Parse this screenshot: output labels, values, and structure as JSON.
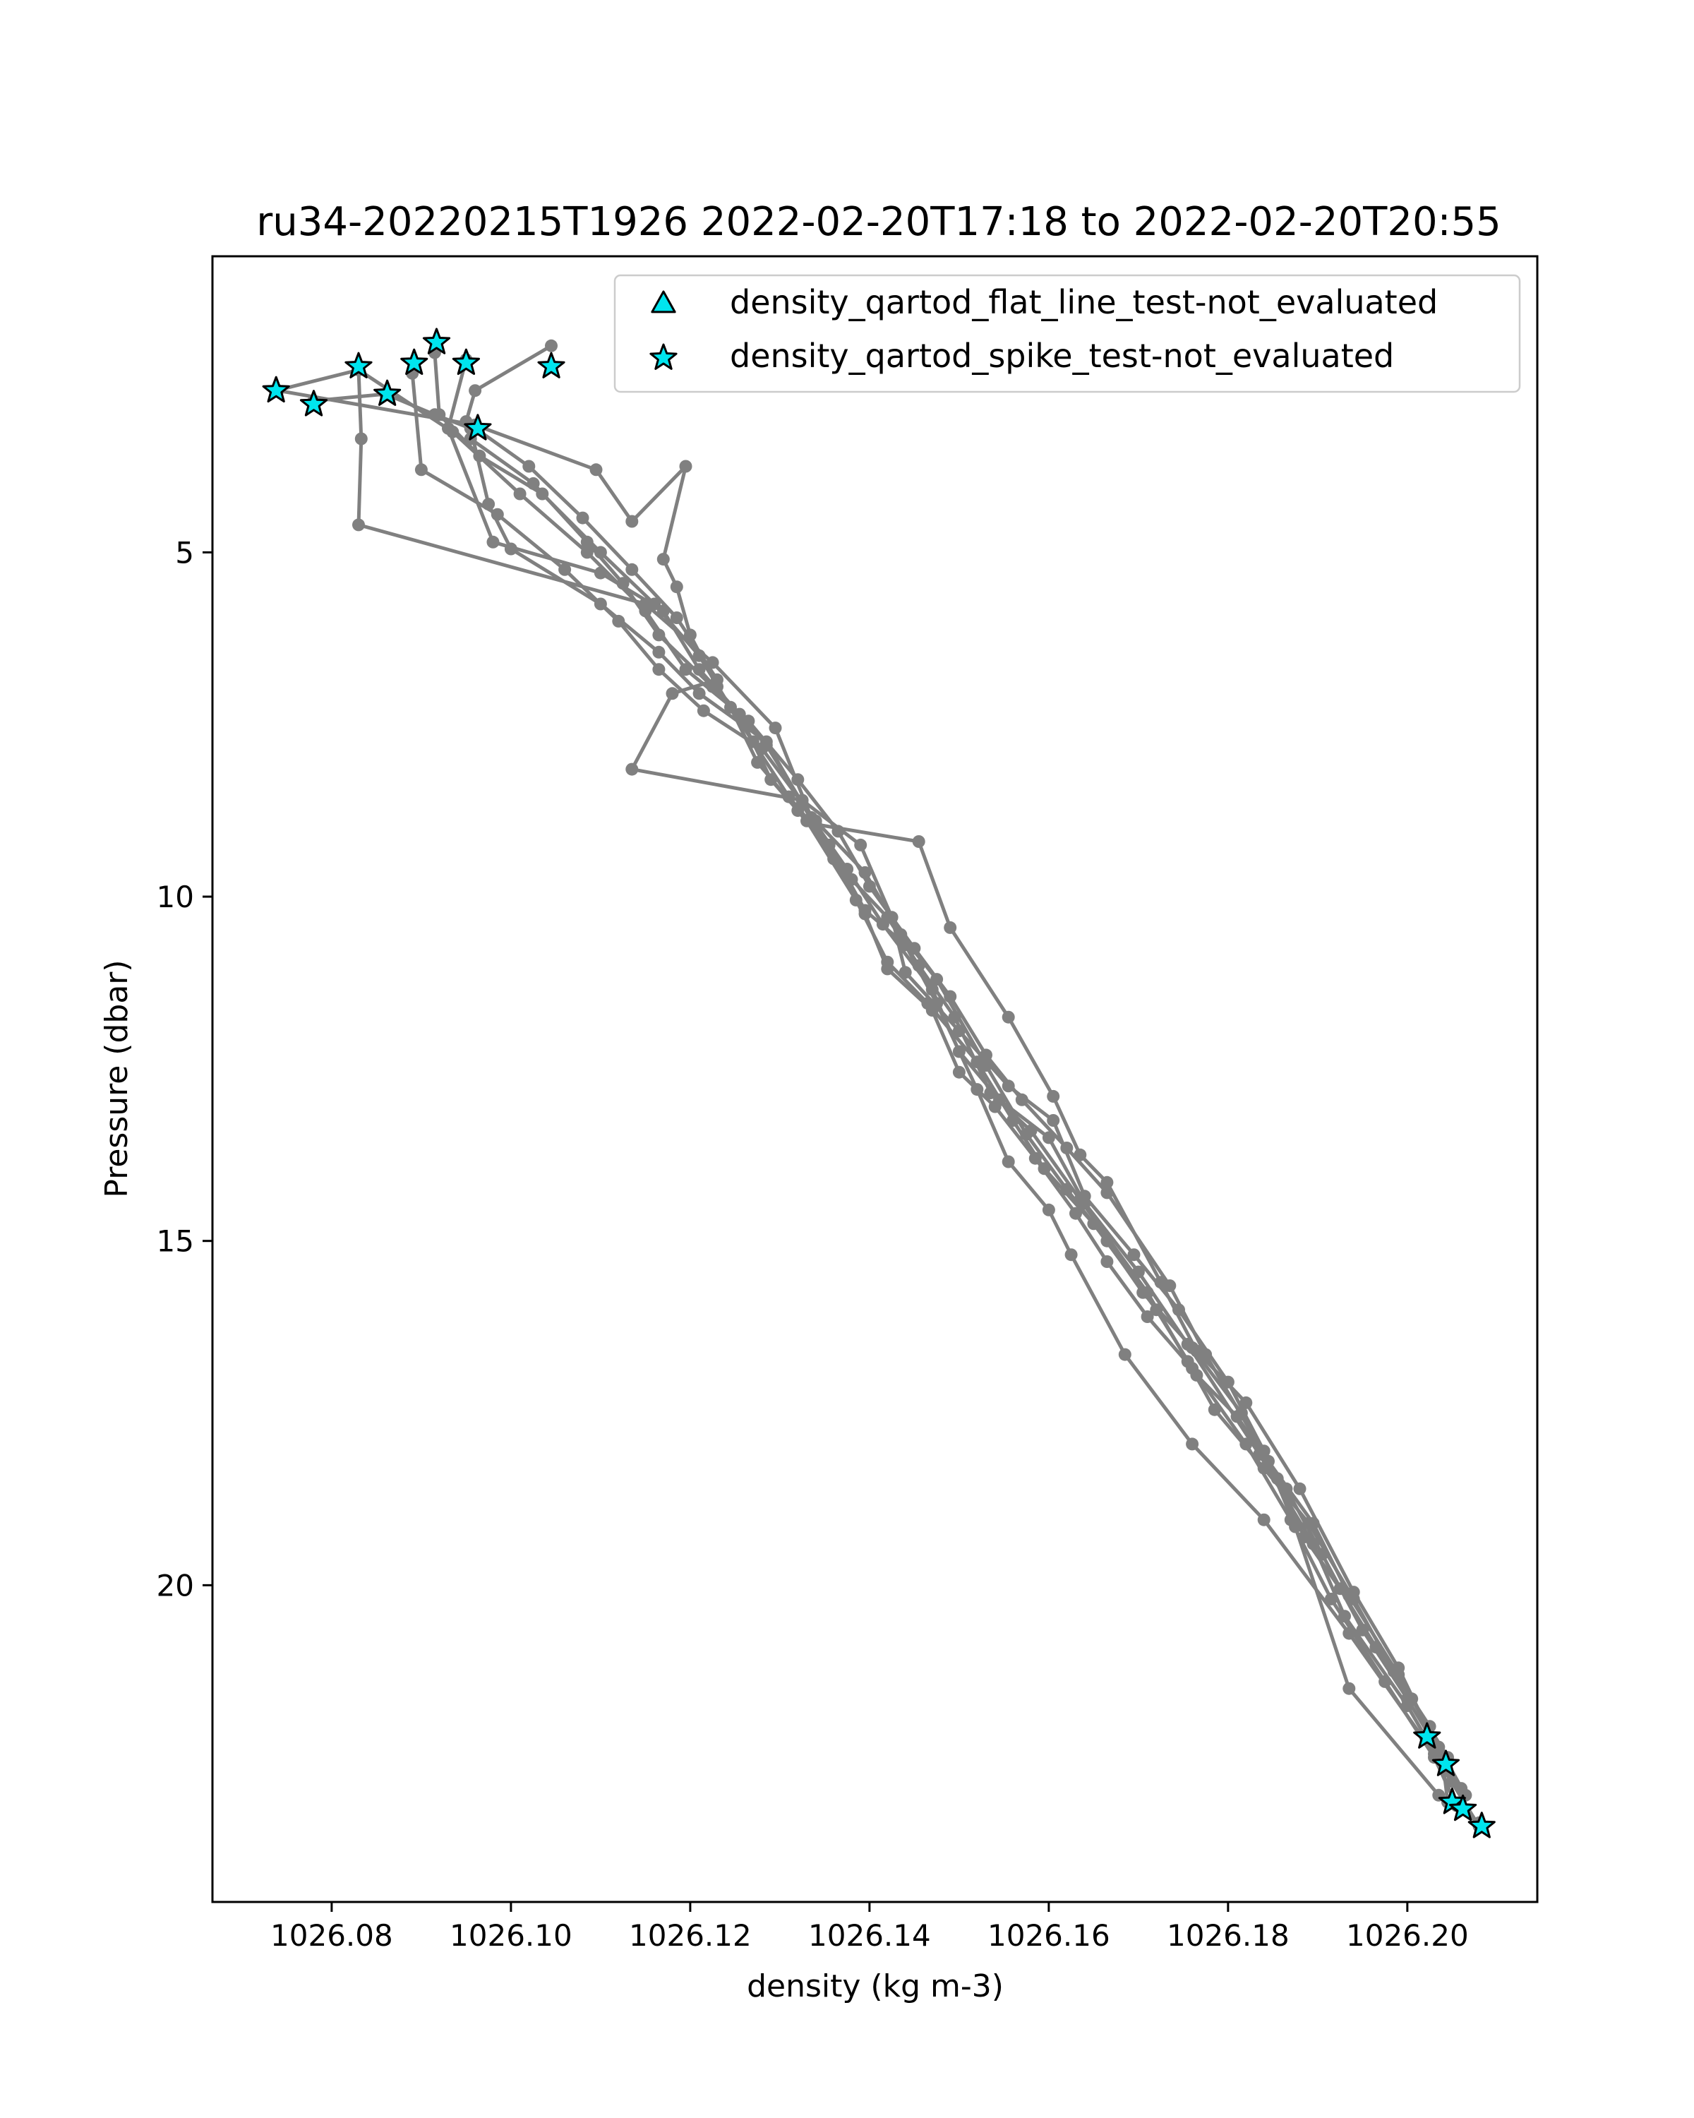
{
  "chart_data": {
    "type": "line",
    "title": "ru34-20220215T1926 2022-02-20T17:18 to 2022-02-20T20:55",
    "xlabel": "density (kg m-3)",
    "ylabel": "Pressure (dbar)",
    "xlim": [
      1026.0667,
      1026.2145
    ],
    "ylim": [
      24.6,
      0.7
    ],
    "y_inverted": true,
    "grid": false,
    "xticks": [
      1026.08,
      1026.1,
      1026.12,
      1026.14,
      1026.16,
      1026.18,
      1026.2
    ],
    "xtick_labels": [
      "1026.08",
      "1026.10",
      "1026.12",
      "1026.14",
      "1026.16",
      "1026.18",
      "1026.20"
    ],
    "yticks": [
      5,
      10,
      15,
      20
    ],
    "ytick_labels": [
      "5",
      "10",
      "15",
      "20"
    ],
    "colors": {
      "line": "#808080",
      "marker_fill": "#00e5ee",
      "marker_edge": "#000000",
      "axes": "#000000"
    },
    "legend": {
      "placement": "upper right",
      "entries": [
        {
          "label": "density_qartod_flat_line_test-not_evaluated",
          "marker": "triangle"
        },
        {
          "label": "density_qartod_spike_test-not_evaluated",
          "marker": "star"
        }
      ]
    },
    "series": [
      {
        "points": [
          [
            1026.0738,
            2.65
          ],
          [
            1026.083,
            2.35
          ],
          [
            1026.0833,
            3.35
          ],
          [
            1026.083,
            4.6
          ],
          [
            1026.115,
            5.75
          ],
          [
            1026.1225,
            6.6
          ],
          [
            1026.1295,
            7.55
          ],
          [
            1026.1335,
            8.85
          ],
          [
            1026.1375,
            9.6
          ],
          [
            1026.1415,
            10.4
          ],
          [
            1026.147,
            11.35
          ],
          [
            1026.15,
            12.25
          ],
          [
            1026.1545,
            12.95
          ],
          [
            1026.16,
            13.5
          ],
          [
            1026.164,
            14.45
          ],
          [
            1026.17,
            15.45
          ],
          [
            1026.1755,
            16.5
          ],
          [
            1026.1835,
            18.1
          ],
          [
            1026.1895,
            19.4
          ],
          [
            1026.193,
            20.45
          ],
          [
            1026.2,
            21.75
          ],
          [
            1026.202,
            22.2
          ],
          [
            1026.204,
            22.6
          ],
          [
            1026.2045,
            23.15
          ],
          [
            1026.208,
            23.45
          ]
        ]
      },
      {
        "points": [
          [
            1026.078,
            2.8
          ],
          [
            1026.086,
            2.7
          ],
          [
            1026.0915,
            3.0
          ],
          [
            1026.0955,
            3.2
          ],
          [
            1026.0975,
            4.3
          ],
          [
            1026.1,
            4.95
          ],
          [
            1026.11,
            5.75
          ],
          [
            1026.1165,
            6.45
          ],
          [
            1026.121,
            7.05
          ],
          [
            1026.1285,
            7.75
          ],
          [
            1026.1325,
            8.65
          ],
          [
            1026.136,
            9.45
          ],
          [
            1026.1395,
            10.25
          ],
          [
            1026.142,
            11.05
          ],
          [
            1026.147,
            11.65
          ],
          [
            1026.15,
            12.55
          ],
          [
            1026.154,
            13.05
          ],
          [
            1026.1585,
            13.8
          ],
          [
            1026.163,
            14.6
          ],
          [
            1026.1665,
            15.3
          ],
          [
            1026.171,
            16.1
          ],
          [
            1026.176,
            16.85
          ],
          [
            1026.182,
            17.95
          ],
          [
            1026.187,
            19.05
          ],
          [
            1026.1915,
            20.2
          ],
          [
            1026.1975,
            21.4
          ],
          [
            1026.203,
            22.5
          ],
          [
            1026.2055,
            23.2
          ]
        ]
      },
      {
        "points": [
          [
            1026.083,
            2.35
          ],
          [
            1026.0935,
            3.25
          ],
          [
            1026.101,
            4.15
          ],
          [
            1026.1085,
            5.0
          ],
          [
            1026.115,
            5.85
          ],
          [
            1026.1195,
            6.7
          ],
          [
            1026.1265,
            7.45
          ],
          [
            1026.132,
            8.3
          ],
          [
            1026.1365,
            9.05
          ],
          [
            1026.14,
            9.85
          ],
          [
            1026.145,
            10.75
          ],
          [
            1026.149,
            11.45
          ],
          [
            1026.153,
            12.3
          ],
          [
            1026.157,
            12.95
          ],
          [
            1026.162,
            13.65
          ],
          [
            1026.1665,
            14.3
          ],
          [
            1026.1735,
            15.65
          ],
          [
            1026.1775,
            16.65
          ],
          [
            1026.1845,
            18.2
          ],
          [
            1026.1895,
            19.1
          ],
          [
            1026.1935,
            20.15
          ],
          [
            1026.199,
            21.3
          ],
          [
            1026.2035,
            22.35
          ],
          [
            1026.2065,
            23.05
          ]
        ]
      },
      {
        "points": [
          [
            1026.089,
            2.4
          ],
          [
            1026.09,
            3.8
          ],
          [
            1026.0985,
            4.45
          ],
          [
            1026.106,
            5.25
          ],
          [
            1026.112,
            6.0
          ],
          [
            1026.1165,
            6.7
          ],
          [
            1026.1215,
            7.3
          ],
          [
            1026.128,
            7.85
          ],
          [
            1026.134,
            8.9
          ],
          [
            1026.1395,
            9.65
          ],
          [
            1026.1435,
            10.55
          ],
          [
            1026.1475,
            11.2
          ],
          [
            1026.153,
            12.45
          ],
          [
            1026.1575,
            13.45
          ],
          [
            1026.162,
            14.25
          ],
          [
            1026.1665,
            15.0
          ],
          [
            1026.1705,
            15.75
          ],
          [
            1026.176,
            16.55
          ],
          [
            1026.1815,
            17.5
          ],
          [
            1026.1855,
            18.45
          ],
          [
            1026.1885,
            19.3
          ],
          [
            1026.1925,
            20.05
          ],
          [
            1026.1965,
            20.9
          ],
          [
            1026.2005,
            21.65
          ],
          [
            1026.2045,
            22.5
          ]
        ]
      },
      {
        "points": [
          [
            1026.0915,
            2.1
          ],
          [
            1026.092,
            3.0
          ],
          [
            1026.0965,
            3.6
          ],
          [
            1026.1035,
            4.15
          ],
          [
            1026.11,
            5.0
          ],
          [
            1026.116,
            5.75
          ],
          [
            1026.121,
            6.5
          ],
          [
            1026.1245,
            7.25
          ],
          [
            1026.1275,
            8.05
          ],
          [
            1026.132,
            8.75
          ],
          [
            1026.138,
            9.75
          ],
          [
            1026.142,
            10.3
          ],
          [
            1026.1455,
            11.0
          ],
          [
            1026.1495,
            11.75
          ],
          [
            1026.1535,
            12.85
          ],
          [
            1026.158,
            13.4
          ],
          [
            1026.1635,
            14.4
          ],
          [
            1026.171,
            15.75
          ],
          [
            1026.1755,
            16.75
          ],
          [
            1026.1785,
            17.45
          ],
          [
            1026.184,
            18.3
          ],
          [
            1026.189,
            19.1
          ],
          [
            1026.194,
            20.2
          ],
          [
            1026.1985,
            21.25
          ],
          [
            1026.2025,
            22.05
          ],
          [
            1026.205,
            22.85
          ]
        ]
      },
      {
        "points": [
          [
            1026.095,
            2.2
          ],
          [
            1026.093,
            3.2
          ],
          [
            1026.098,
            4.85
          ],
          [
            1026.11,
            5.3
          ],
          [
            1026.117,
            5.85
          ],
          [
            1026.121,
            6.7
          ],
          [
            1026.1255,
            7.35
          ],
          [
            1026.129,
            8.3
          ],
          [
            1026.133,
            8.9
          ],
          [
            1026.1385,
            10.05
          ],
          [
            1026.142,
            10.95
          ],
          [
            1026.1465,
            11.55
          ],
          [
            1026.152,
            12.4
          ],
          [
            1026.156,
            13.25
          ],
          [
            1026.1595,
            13.95
          ],
          [
            1026.165,
            14.75
          ],
          [
            1026.172,
            16.0
          ],
          [
            1026.1765,
            16.95
          ],
          [
            1026.181,
            17.55
          ],
          [
            1026.1865,
            18.6
          ],
          [
            1026.1905,
            19.55
          ],
          [
            1026.195,
            20.65
          ],
          [
            1026.2,
            21.65
          ],
          [
            1026.206,
            22.95
          ]
        ]
      },
      {
        "points": [
          [
            1026.096,
            3.15
          ],
          [
            1026.0955,
            3.35
          ],
          [
            1026.1025,
            4.0
          ],
          [
            1026.1085,
            4.85
          ],
          [
            1026.1125,
            5.45
          ],
          [
            1026.1165,
            6.2
          ],
          [
            1026.1225,
            6.95
          ],
          [
            1026.1285,
            7.8
          ],
          [
            1026.134,
            8.95
          ],
          [
            1026.1455,
            9.2
          ],
          [
            1026.149,
            10.45
          ],
          [
            1026.1555,
            11.75
          ],
          [
            1026.1605,
            12.9
          ],
          [
            1026.1635,
            13.75
          ],
          [
            1026.1665,
            14.15
          ],
          [
            1026.1725,
            15.6
          ],
          [
            1026.1765,
            16.6
          ],
          [
            1026.182,
            17.35
          ],
          [
            1026.188,
            18.6
          ],
          [
            1026.194,
            20.1
          ],
          [
            1026.199,
            21.2
          ],
          [
            1026.204,
            22.55
          ]
        ]
      },
      {
        "points": [
          [
            1026.1045,
            2.0
          ],
          [
            1026.096,
            2.65
          ],
          [
            1026.095,
            3.1
          ],
          [
            1026.102,
            3.75
          ],
          [
            1026.108,
            4.5
          ],
          [
            1026.1135,
            5.25
          ],
          [
            1026.1185,
            5.95
          ],
          [
            1026.123,
            6.85
          ],
          [
            1026.118,
            7.05
          ],
          [
            1026.1135,
            8.15
          ],
          [
            1026.1325,
            8.6
          ],
          [
            1026.139,
            9.25
          ],
          [
            1026.1425,
            10.3
          ],
          [
            1026.144,
            11.1
          ],
          [
            1026.15,
            11.95
          ],
          [
            1026.1555,
            12.75
          ],
          [
            1026.1605,
            13.25
          ],
          [
            1026.164,
            14.35
          ],
          [
            1026.1695,
            15.2
          ],
          [
            1026.1745,
            16.0
          ],
          [
            1026.18,
            17.05
          ],
          [
            1026.184,
            18.05
          ],
          [
            1026.1875,
            19.15
          ],
          [
            1026.1935,
            21.5
          ],
          [
            1026.2035,
            23.05
          ]
        ]
      },
      {
        "points": [
          [
            1026.074,
            2.65
          ],
          [
            1026.096,
            3.15
          ],
          [
            1026.1095,
            3.8
          ],
          [
            1026.1135,
            4.55
          ],
          [
            1026.1195,
            3.75
          ],
          [
            1026.117,
            5.1
          ],
          [
            1026.1185,
            5.5
          ],
          [
            1026.12,
            6.2
          ],
          [
            1026.123,
            6.95
          ],
          [
            1026.127,
            7.75
          ],
          [
            1026.131,
            8.55
          ],
          [
            1026.1355,
            9.25
          ],
          [
            1026.1395,
            10.2
          ],
          [
            1026.144,
            10.7
          ],
          [
            1026.1475,
            11.55
          ],
          [
            1026.152,
            12.8
          ],
          [
            1026.1555,
            13.85
          ],
          [
            1026.16,
            14.55
          ],
          [
            1026.1625,
            15.2
          ],
          [
            1026.1685,
            16.65
          ],
          [
            1026.176,
            17.95
          ],
          [
            1026.184,
            19.05
          ],
          [
            1026.1935,
            20.7
          ],
          [
            1026.203,
            22.45
          ],
          [
            1026.208,
            23.5
          ]
        ]
      }
    ],
    "flagged_points": [
      {
        "test": "density_qartod_spike_test-not_evaluated",
        "points": [
          [
            1026.0738,
            2.65
          ],
          [
            1026.078,
            2.85
          ],
          [
            1026.083,
            2.3
          ],
          [
            1026.0862,
            2.7
          ],
          [
            1026.0892,
            2.25
          ],
          [
            1026.0917,
            1.95
          ],
          [
            1026.095,
            2.25
          ],
          [
            1026.0963,
            3.2
          ],
          [
            1026.1045,
            2.3
          ],
          [
            1026.2022,
            22.2
          ],
          [
            1026.2043,
            22.6
          ],
          [
            1026.205,
            23.15
          ],
          [
            1026.2062,
            23.25
          ],
          [
            1026.2083,
            23.5
          ]
        ]
      },
      {
        "test": "density_qartod_flat_line_test-not_evaluated",
        "points": []
      }
    ]
  }
}
